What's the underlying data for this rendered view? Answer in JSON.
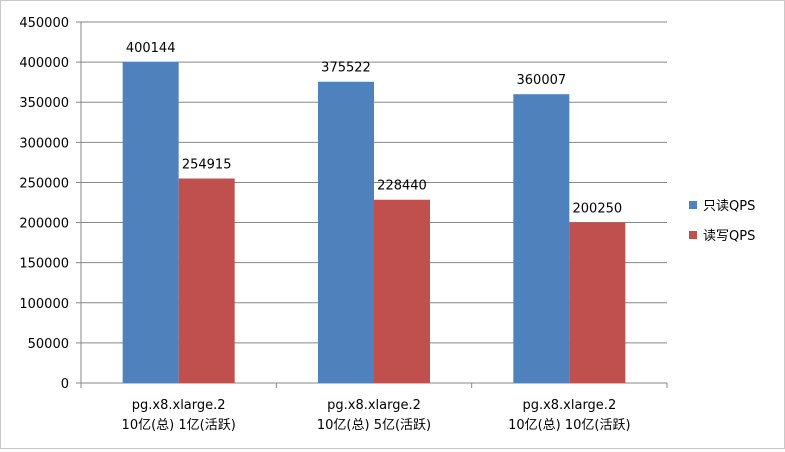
{
  "chart_data": {
    "type": "bar",
    "title": "",
    "xlabel": "",
    "ylabel": "",
    "categories": [
      [
        "pg.x8.xlarge.2",
        "10亿(总) 1亿(活跃)"
      ],
      [
        "pg.x8.xlarge.2",
        "10亿(总) 5亿(活跃)"
      ],
      [
        "pg.x8.xlarge.2",
        "10亿(总) 10亿(活跃)"
      ]
    ],
    "series": [
      {
        "name": "只读QPS",
        "values": [
          400144,
          375522,
          360007
        ],
        "color": "#4f81bd"
      },
      {
        "name": "读写QPS",
        "values": [
          254915,
          228440,
          200250
        ],
        "color": "#c0504d"
      }
    ],
    "ylim": [
      0,
      450000
    ],
    "yticks": [
      0,
      50000,
      100000,
      150000,
      200000,
      250000,
      300000,
      350000,
      400000,
      450000
    ],
    "grid": true,
    "legend_position": "right",
    "data_labels": true
  }
}
